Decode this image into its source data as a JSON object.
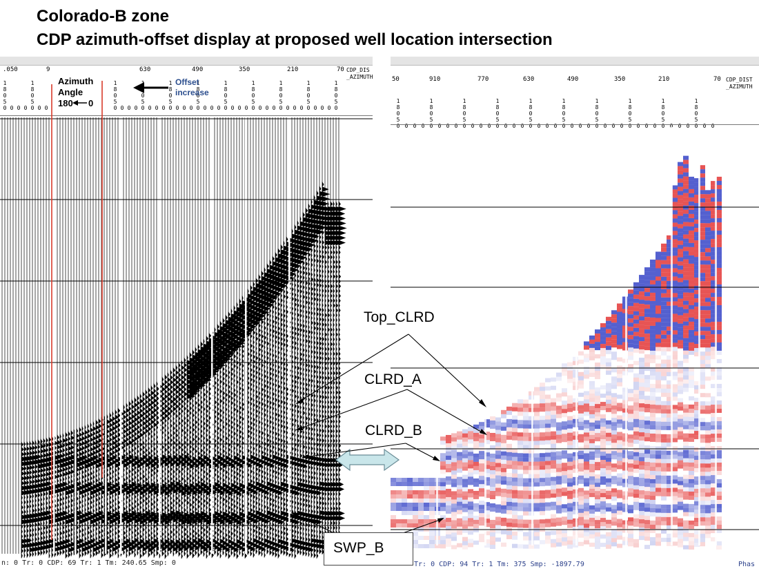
{
  "title": {
    "line1": "Colorado-B zone",
    "line2": "CDP azimuth-offset display at proposed well location intersection"
  },
  "left_panel": {
    "ruler_ticks": [
      ".050",
      "9",
      "630",
      "490",
      "350",
      "210",
      "70"
    ],
    "header_label_1": "CDP_DIS",
    "header_label_2": "_AZIMUTH",
    "azimuth_label_1": "Azimuth",
    "azimuth_label_2": "Angle",
    "azimuth_180": "180",
    "azimuth_0": "0",
    "offset_label_1": "Offset",
    "offset_label_2": "increase",
    "status": "n: 0  Tr: 0  CDP: 69  Tr: 1  Tm: 240.65  Smp: 0"
  },
  "right_panel": {
    "ruler_ticks": [
      "50",
      "910",
      "770",
      "630",
      "490",
      "350",
      "210",
      "70"
    ],
    "header_label_1": "CDP_DIST",
    "header_label_2": "_AZIMUTH",
    "status": "Tr: 0  CDP: 94  Tr: 1  Tm: 375  Smp: -1897.79",
    "status_right": "Phas"
  },
  "annotations": {
    "top_clrd": "Top_CLRD",
    "clrd_a": "CLRD_A",
    "clrd_b": "CLRD_B",
    "swp_b": "SWP_B"
  },
  "colors": {
    "azimuth_line": "#d93a2a",
    "arrow_fill": "#c9e6ea",
    "positive_amplitude": "#e02020",
    "negative_amplitude": "#2030c0"
  }
}
